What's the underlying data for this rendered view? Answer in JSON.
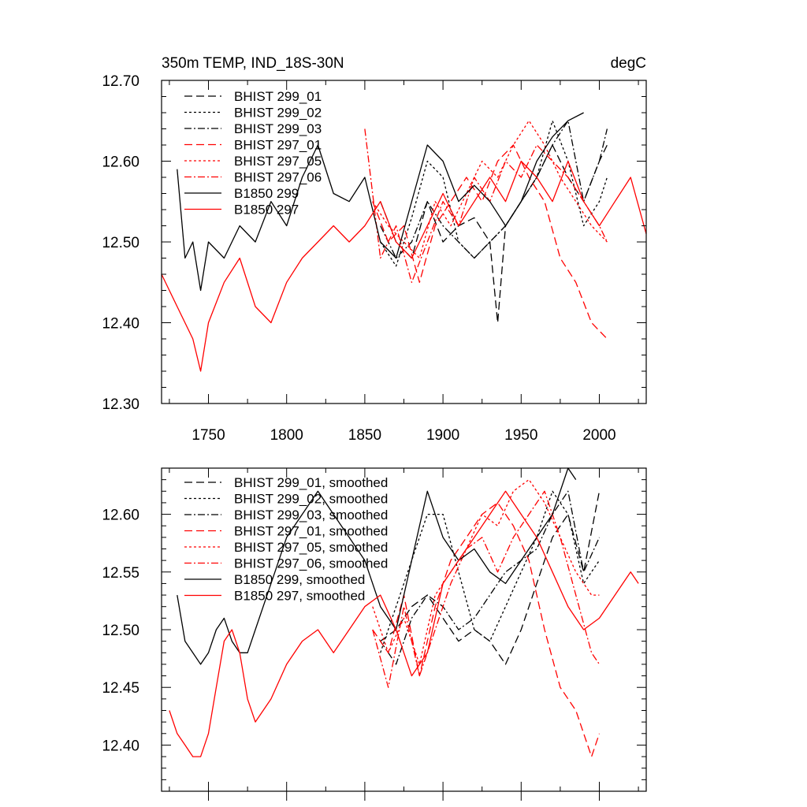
{
  "chart_data": [
    {
      "type": "line",
      "title": "350m TEMP, IND_18S-30N",
      "units": "degC",
      "xlim": [
        1720,
        2030
      ],
      "ylim": [
        12.3,
        12.7
      ],
      "xticks": [
        1750,
        1800,
        1850,
        1900,
        1950,
        2000
      ],
      "xtick_labels": [
        "1750",
        "1800",
        "1850",
        "1900",
        "1950",
        "2000"
      ],
      "yticks": [
        12.3,
        12.4,
        12.5,
        12.6,
        12.7
      ],
      "ytick_labels": [
        "12.30",
        "12.40",
        "12.50",
        "12.60",
        "12.70"
      ],
      "legend_position": "top-left",
      "series": [
        {
          "name": "BHIST 299_01",
          "color": "#000000",
          "dash": "long-dash",
          "x": [
            1860,
            1870,
            1880,
            1890,
            1900,
            1910,
            1920,
            1930,
            1935,
            1940,
            1950,
            1960,
            1970,
            1980,
            1990,
            2000,
            2005
          ],
          "y": [
            12.55,
            12.5,
            12.48,
            12.55,
            12.5,
            12.52,
            12.53,
            12.5,
            12.4,
            12.52,
            12.55,
            12.58,
            12.62,
            12.58,
            12.55,
            12.6,
            12.62
          ]
        },
        {
          "name": "BHIST 299_02",
          "color": "#000000",
          "dash": "short-dash",
          "x": [
            1860,
            1870,
            1880,
            1890,
            1900,
            1910,
            1920,
            1930,
            1940,
            1950,
            1960,
            1970,
            1980,
            1990,
            2000,
            2005
          ],
          "y": [
            12.5,
            12.47,
            12.53,
            12.6,
            12.58,
            12.5,
            12.48,
            12.5,
            12.52,
            12.55,
            12.58,
            12.65,
            12.6,
            12.52,
            12.55,
            12.58
          ]
        },
        {
          "name": "BHIST 299_03",
          "color": "#000000",
          "dash": "dash-dot",
          "x": [
            1860,
            1870,
            1880,
            1890,
            1900,
            1910,
            1920,
            1930,
            1940,
            1950,
            1960,
            1970,
            1980,
            1990,
            2000,
            2005
          ],
          "y": [
            12.52,
            12.48,
            12.5,
            12.55,
            12.52,
            12.5,
            12.48,
            12.5,
            12.52,
            12.55,
            12.58,
            12.62,
            12.65,
            12.55,
            12.6,
            12.64
          ]
        },
        {
          "name": "BHIST 297_01",
          "color": "#ff0000",
          "dash": "long-dash",
          "x": [
            1855,
            1865,
            1875,
            1885,
            1895,
            1905,
            1915,
            1925,
            1935,
            1945,
            1955,
            1965,
            1975,
            1985,
            1995,
            2005
          ],
          "y": [
            12.55,
            12.5,
            12.52,
            12.45,
            12.52,
            12.55,
            12.58,
            12.55,
            12.6,
            12.62,
            12.58,
            12.55,
            12.48,
            12.45,
            12.4,
            12.38
          ]
        },
        {
          "name": "BHIST 297_05",
          "color": "#ff0000",
          "dash": "short-dash",
          "x": [
            1855,
            1865,
            1875,
            1885,
            1895,
            1905,
            1915,
            1925,
            1935,
            1945,
            1955,
            1965,
            1975,
            1985,
            1995,
            2005
          ],
          "y": [
            12.55,
            12.52,
            12.5,
            12.48,
            12.55,
            12.52,
            12.56,
            12.6,
            12.58,
            12.62,
            12.65,
            12.62,
            12.58,
            12.55,
            12.52,
            12.5
          ]
        },
        {
          "name": "BHIST 297_06",
          "color": "#ff0000",
          "dash": "dash-dot",
          "x": [
            1850,
            1860,
            1870,
            1880,
            1890,
            1900,
            1910,
            1920,
            1930,
            1940,
            1950,
            1960,
            1970,
            1980,
            1990,
            2000,
            2005
          ],
          "y": [
            12.64,
            12.48,
            12.52,
            12.45,
            12.5,
            12.55,
            12.52,
            12.58,
            12.55,
            12.6,
            12.58,
            12.62,
            12.6,
            12.58,
            12.55,
            12.52,
            12.5
          ]
        },
        {
          "name": "B1850 299",
          "color": "#000000",
          "dash": "solid",
          "x": [
            1730,
            1735,
            1740,
            1745,
            1750,
            1760,
            1770,
            1780,
            1790,
            1800,
            1810,
            1820,
            1830,
            1840,
            1850,
            1860,
            1870,
            1880,
            1890,
            1900,
            1910,
            1920,
            1930,
            1940,
            1950,
            1960,
            1970,
            1980,
            1990
          ],
          "y": [
            12.59,
            12.48,
            12.5,
            12.44,
            12.5,
            12.48,
            12.52,
            12.5,
            12.55,
            12.52,
            12.58,
            12.62,
            12.56,
            12.55,
            12.58,
            12.5,
            12.48,
            12.55,
            12.62,
            12.6,
            12.55,
            12.57,
            12.55,
            12.52,
            12.55,
            12.6,
            12.63,
            12.65,
            12.66
          ]
        },
        {
          "name": "B1850 297",
          "color": "#ff0000",
          "dash": "solid",
          "x": [
            1720,
            1730,
            1740,
            1745,
            1750,
            1760,
            1770,
            1780,
            1790,
            1800,
            1810,
            1820,
            1830,
            1840,
            1850,
            1860,
            1870,
            1880,
            1890,
            1900,
            1910,
            1920,
            1930,
            1940,
            1950,
            1960,
            1970,
            1980,
            1990,
            2000,
            2010,
            2020,
            2030
          ],
          "y": [
            12.46,
            12.42,
            12.38,
            12.34,
            12.4,
            12.45,
            12.48,
            12.42,
            12.4,
            12.45,
            12.48,
            12.5,
            12.52,
            12.5,
            12.52,
            12.55,
            12.5,
            12.48,
            12.52,
            12.56,
            12.52,
            12.55,
            12.58,
            12.55,
            12.6,
            12.58,
            12.55,
            12.6,
            12.55,
            12.52,
            12.55,
            12.58,
            12.51
          ]
        }
      ]
    },
    {
      "type": "line",
      "xlim": [
        1720,
        2030
      ],
      "ylim": [
        12.36,
        12.64
      ],
      "yticks": [
        12.4,
        12.45,
        12.5,
        12.55,
        12.6
      ],
      "ytick_labels": [
        "12.40",
        "12.45",
        "12.50",
        "12.55",
        "12.60"
      ],
      "legend_position": "top-left",
      "series": [
        {
          "name": "BHIST 299_01, smoothed",
          "color": "#000000",
          "dash": "long-dash",
          "x": [
            1860,
            1870,
            1880,
            1890,
            1900,
            1910,
            1920,
            1930,
            1940,
            1950,
            1960,
            1970,
            1980,
            1990,
            2000
          ],
          "y": [
            12.49,
            12.5,
            12.52,
            12.53,
            12.51,
            12.49,
            12.5,
            12.49,
            12.47,
            12.5,
            12.54,
            12.58,
            12.6,
            12.55,
            12.62
          ]
        },
        {
          "name": "BHIST 299_02, smoothed",
          "color": "#000000",
          "dash": "short-dash",
          "x": [
            1860,
            1870,
            1880,
            1890,
            1900,
            1910,
            1920,
            1930,
            1940,
            1950,
            1960,
            1970,
            1980,
            1990,
            2000
          ],
          "y": [
            12.48,
            12.52,
            12.56,
            12.6,
            12.6,
            12.55,
            12.5,
            12.49,
            12.52,
            12.55,
            12.58,
            12.62,
            12.6,
            12.54,
            12.56
          ]
        },
        {
          "name": "BHIST 299_03, smoothed",
          "color": "#000000",
          "dash": "dash-dot",
          "x": [
            1860,
            1870,
            1880,
            1890,
            1900,
            1910,
            1920,
            1930,
            1940,
            1950,
            1960,
            1970,
            1980,
            1990,
            2000
          ],
          "y": [
            12.49,
            12.47,
            12.51,
            12.53,
            12.52,
            12.5,
            12.51,
            12.53,
            12.55,
            12.56,
            12.57,
            12.6,
            12.62,
            12.55,
            12.58
          ]
        },
        {
          "name": "BHIST 297_01, smoothed",
          "color": "#ff0000",
          "dash": "long-dash",
          "x": [
            1855,
            1865,
            1875,
            1885,
            1895,
            1905,
            1915,
            1925,
            1935,
            1945,
            1955,
            1965,
            1975,
            1985,
            1995,
            2000
          ],
          "y": [
            12.5,
            12.48,
            12.53,
            12.46,
            12.52,
            12.56,
            12.58,
            12.6,
            12.61,
            12.59,
            12.56,
            12.5,
            12.45,
            12.43,
            12.39,
            12.41
          ]
        },
        {
          "name": "BHIST 297_05, smoothed",
          "color": "#ff0000",
          "dash": "short-dash",
          "x": [
            1855,
            1865,
            1875,
            1885,
            1895,
            1905,
            1915,
            1925,
            1935,
            1945,
            1955,
            1965,
            1975,
            1985,
            1995,
            2000
          ],
          "y": [
            12.52,
            12.48,
            12.51,
            12.47,
            12.53,
            12.55,
            12.57,
            12.6,
            12.59,
            12.62,
            12.63,
            12.61,
            12.58,
            12.55,
            12.53,
            12.53
          ]
        },
        {
          "name": "BHIST 297_06, smoothed",
          "color": "#ff0000",
          "dash": "dash-dot",
          "x": [
            1855,
            1865,
            1875,
            1885,
            1895,
            1905,
            1915,
            1925,
            1935,
            1945,
            1955,
            1965,
            1975,
            1985,
            1995,
            2000
          ],
          "y": [
            12.5,
            12.45,
            12.52,
            12.46,
            12.5,
            12.54,
            12.57,
            12.58,
            12.55,
            12.58,
            12.6,
            12.62,
            12.58,
            12.53,
            12.48,
            12.47
          ]
        },
        {
          "name": "B1850 299, smoothed",
          "color": "#000000",
          "dash": "solid",
          "x": [
            1730,
            1735,
            1740,
            1745,
            1750,
            1755,
            1760,
            1765,
            1770,
            1775,
            1780,
            1790,
            1800,
            1810,
            1820,
            1830,
            1840,
            1850,
            1860,
            1870,
            1880,
            1890,
            1900,
            1910,
            1920,
            1930,
            1940,
            1950,
            1960,
            1970,
            1980,
            1985
          ],
          "y": [
            12.53,
            12.49,
            12.48,
            12.47,
            12.48,
            12.5,
            12.51,
            12.49,
            12.48,
            12.48,
            12.5,
            12.54,
            12.58,
            12.6,
            12.62,
            12.6,
            12.58,
            12.56,
            12.52,
            12.5,
            12.56,
            12.62,
            12.58,
            12.56,
            12.57,
            12.55,
            12.54,
            12.56,
            12.58,
            12.6,
            12.64,
            12.63
          ]
        },
        {
          "name": "B1850 297, smoothed",
          "color": "#ff0000",
          "dash": "solid",
          "x": [
            1725,
            1730,
            1735,
            1740,
            1745,
            1750,
            1755,
            1760,
            1765,
            1770,
            1775,
            1780,
            1790,
            1800,
            1810,
            1820,
            1830,
            1840,
            1850,
            1860,
            1870,
            1880,
            1890,
            1900,
            1910,
            1920,
            1930,
            1940,
            1950,
            1960,
            1970,
            1980,
            1990,
            2000,
            2010,
            2020,
            2025
          ],
          "y": [
            12.43,
            12.41,
            12.4,
            12.39,
            12.39,
            12.41,
            12.45,
            12.49,
            12.5,
            12.48,
            12.44,
            12.42,
            12.44,
            12.47,
            12.49,
            12.5,
            12.48,
            12.5,
            12.52,
            12.53,
            12.5,
            12.46,
            12.48,
            12.54,
            12.56,
            12.58,
            12.6,
            12.62,
            12.6,
            12.58,
            12.55,
            12.52,
            12.5,
            12.51,
            12.53,
            12.55,
            12.54
          ]
        }
      ]
    }
  ]
}
